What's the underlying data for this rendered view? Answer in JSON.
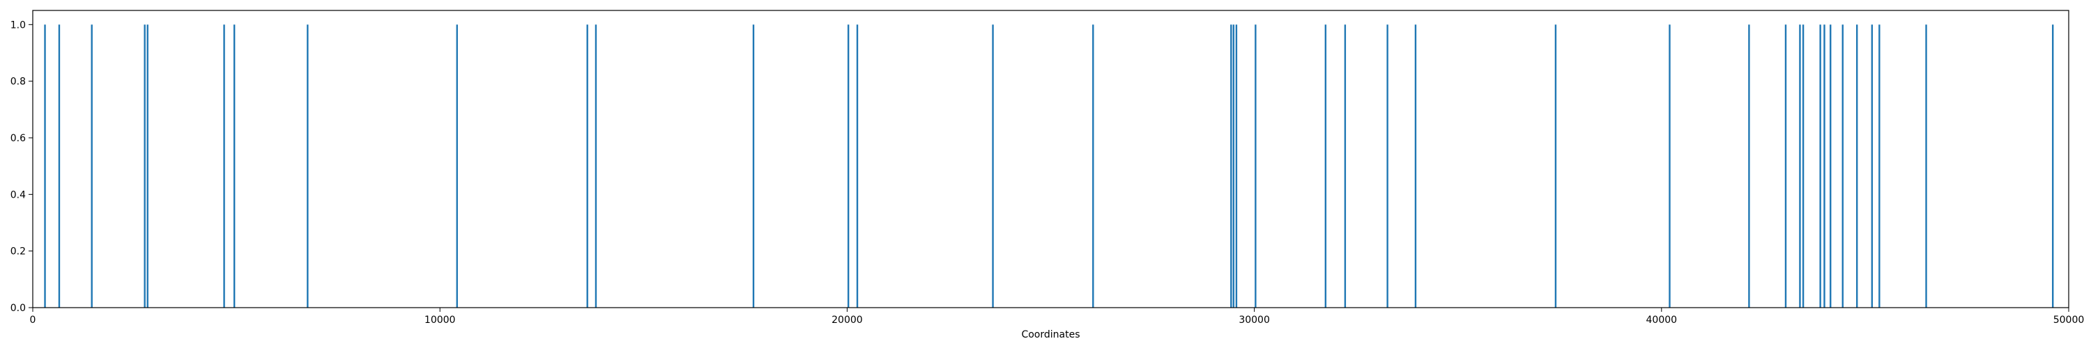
{
  "chart_data": {
    "type": "bar",
    "title": "",
    "xlabel": "Coordinates",
    "ylabel": "",
    "xlim": [
      0,
      50000
    ],
    "ylim": [
      0,
      1.05
    ],
    "grid": false,
    "legend": "none",
    "x_ticks": [
      0,
      10000,
      20000,
      30000,
      40000,
      50000
    ],
    "x_tick_labels": [
      "0",
      "10000",
      "20000",
      "30000",
      "40000",
      "50000"
    ],
    "y_ticks": [
      0.0,
      0.2,
      0.4,
      0.6,
      0.8,
      1.0
    ],
    "y_tick_labels": [
      "0.0",
      "0.2",
      "0.4",
      "0.6",
      "0.8",
      "1.0"
    ],
    "series": [
      {
        "color": "#1f77b4",
        "positions": [
          300,
          650,
          1450,
          2750,
          2820,
          4700,
          4950,
          6750,
          10420,
          13620,
          13830,
          17700,
          20030,
          20250,
          23580,
          26040,
          29430,
          29490,
          29560,
          30030,
          31750,
          32230,
          33270,
          33960,
          37400,
          40200,
          42150,
          43050,
          43400,
          43480,
          43900,
          44000,
          44150,
          44450,
          44800,
          45170,
          45350,
          46500,
          49610
        ],
        "values": [
          1,
          1,
          1,
          1,
          1,
          1,
          1,
          1,
          1,
          1,
          1,
          1,
          1,
          1,
          1,
          1,
          1,
          1,
          1,
          1,
          1,
          1,
          1,
          1,
          1,
          1,
          1,
          1,
          1,
          1,
          1,
          1,
          1,
          1,
          1,
          1,
          1,
          1,
          1
        ]
      }
    ]
  }
}
